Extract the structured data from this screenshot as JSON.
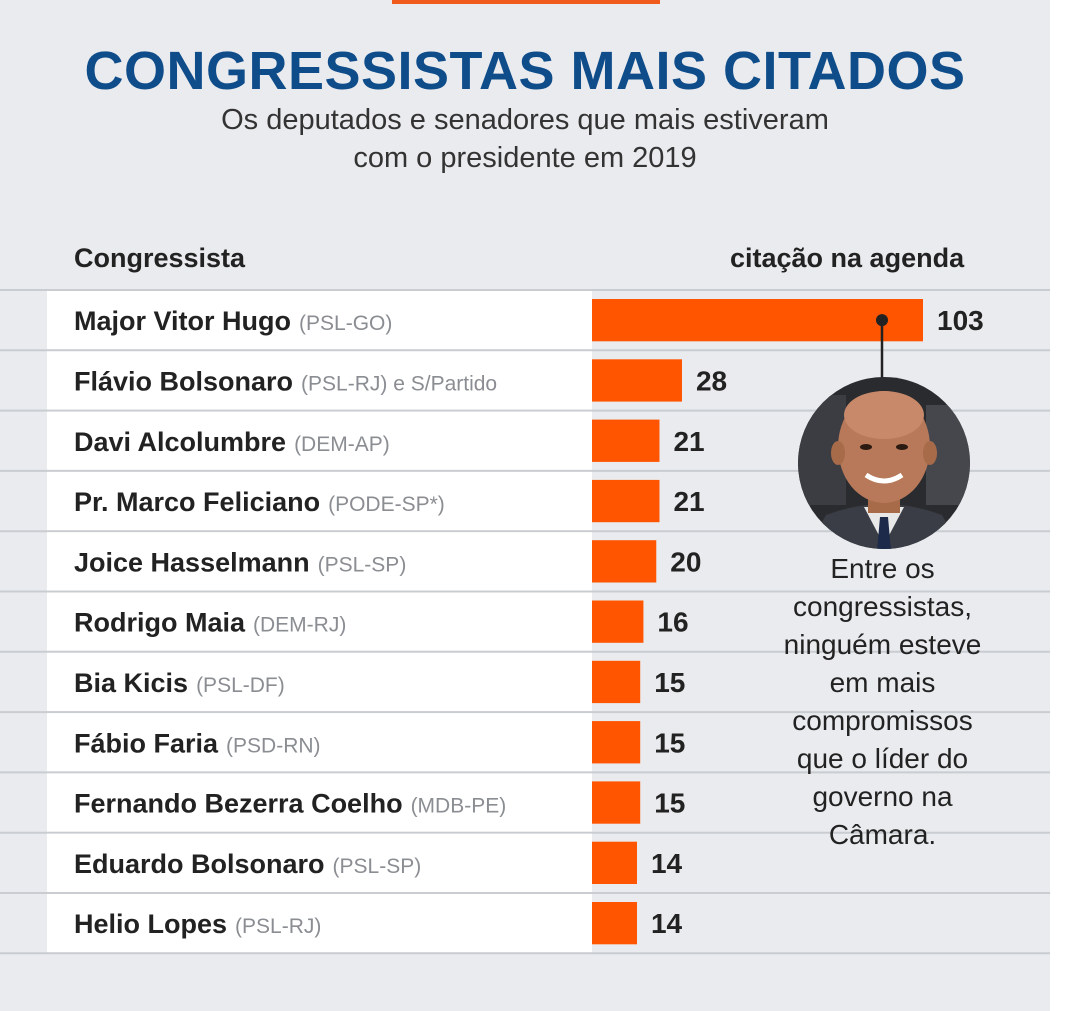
{
  "header": {
    "title": "CONGRESSISTAS MAIS CITADOS",
    "subtitle_line1": "Os deputados e senadores que mais estiveram",
    "subtitle_line2": "com o presidente em 2019"
  },
  "columns": {
    "left": "Congressista",
    "right": "citação na agenda"
  },
  "callout": {
    "lines": [
      "Entre os",
      "congressistas,",
      "ninguém esteve",
      "em mais",
      "compromissos",
      "que o líder do",
      "governo na",
      "Câmara."
    ],
    "photo": "politician-portrait"
  },
  "colors": {
    "bar": "#ff5500",
    "title": "#0f4c8a",
    "background": "#e9ebee",
    "row": "#ffffff"
  },
  "chart_data": {
    "type": "bar",
    "orientation": "horizontal",
    "categories": [
      "Major Vitor Hugo",
      "Flávio Bolsonaro",
      "Davi Alcolumbre",
      "Pr. Marco Feliciano",
      "Joice Hasselmann",
      "Rodrigo Maia",
      "Bia Kicis",
      "Fábio Faria",
      "Fernando Bezerra Coelho",
      "Eduardo Bolsonaro",
      "Helio Lopes"
    ],
    "parties": [
      "(PSL-GO)",
      "(PSL-RJ) e S/Partido",
      "(DEM-AP)",
      "(PODE-SP*)",
      "(PSL-SP)",
      "(DEM-RJ)",
      "(PSL-DF)",
      "(PSD-RN)",
      "(MDB-PE)",
      "(PSL-SP)",
      "(PSL-RJ)"
    ],
    "values": [
      103,
      28,
      21,
      21,
      20,
      16,
      15,
      15,
      15,
      14,
      14
    ],
    "xlim": [
      0,
      103
    ],
    "grid": false,
    "data_labels": true
  }
}
